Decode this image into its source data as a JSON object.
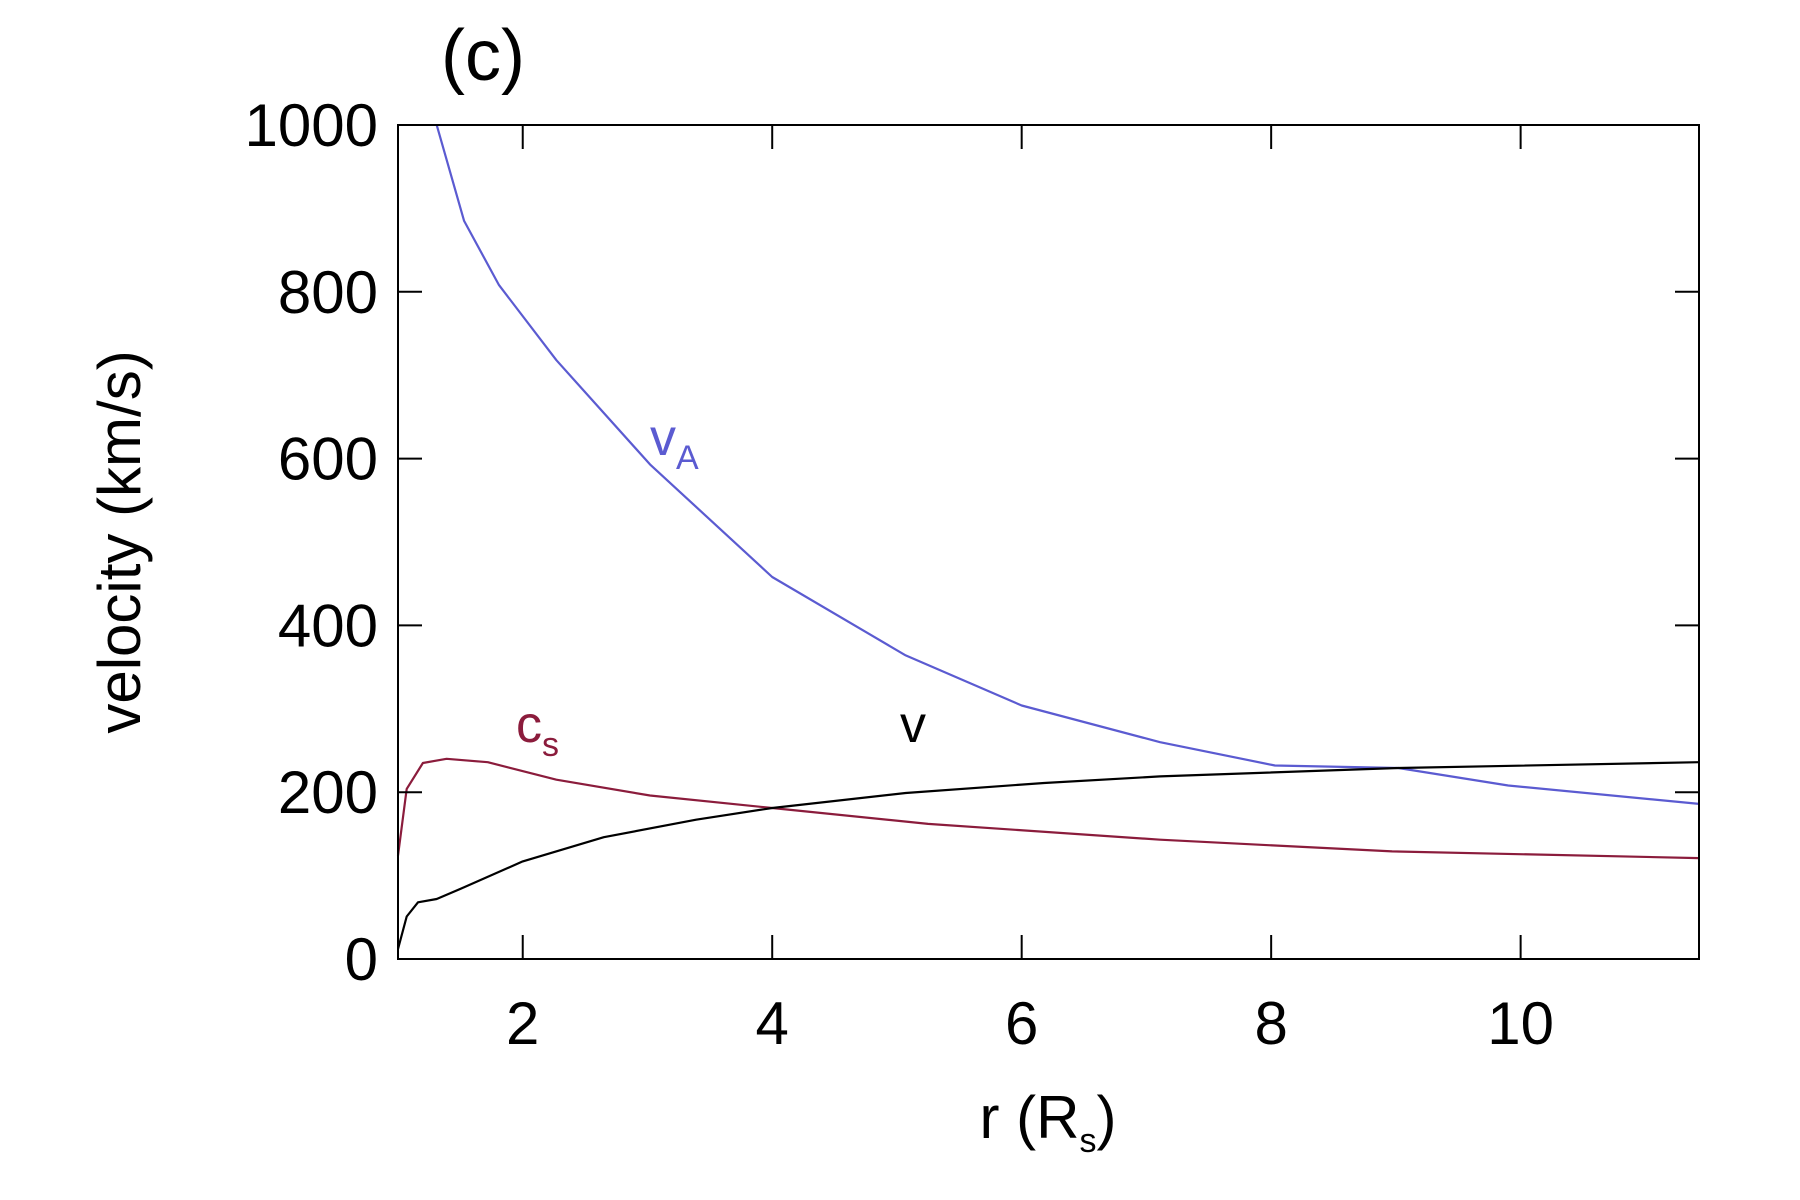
{
  "chart_data": {
    "type": "line",
    "title": "(c)",
    "xlabel": {
      "text": "r (R",
      "sub": "s",
      "end": ")"
    },
    "ylabel": "velocity (km/s)",
    "xlim": [
      1,
      11.43
    ],
    "xticks": [
      2,
      4,
      6,
      8,
      10
    ],
    "ylim": [
      0,
      1000
    ],
    "yticks": [
      0,
      200,
      400,
      600,
      800,
      1000
    ],
    "series": [
      {
        "name": "v_A",
        "color": "#5b5bd1",
        "x": [
          1.31,
          1.53,
          1.81,
          2.27,
          3.02,
          4.0,
          5.07,
          6.0,
          7.11,
          8.03,
          9.02,
          9.9,
          11.43
        ],
        "values": [
          1000,
          885,
          808,
          718,
          593,
          458,
          364,
          304,
          260,
          232,
          229,
          208,
          186
        ]
      },
      {
        "name": "c_s",
        "color": "#8b1c3c",
        "x": [
          1.0,
          1.07,
          1.2,
          1.39,
          1.72,
          2.27,
          3.02,
          4.0,
          5.25,
          7.11,
          8.97,
          11.43
        ],
        "values": [
          124,
          204,
          235,
          240,
          236,
          215,
          196,
          181,
          162,
          143,
          129,
          121
        ]
      },
      {
        "name": "v",
        "color": "#000000",
        "x": [
          1.0,
          1.07,
          1.16,
          1.31,
          1.53,
          2.0,
          2.65,
          3.39,
          4.0,
          5.07,
          6.18,
          7.11,
          9.02,
          11.43
        ],
        "values": [
          12,
          51,
          68,
          72,
          86,
          117,
          146,
          167,
          181,
          199,
          211,
          219,
          229,
          236
        ]
      }
    ],
    "annotations": [
      {
        "text": "v",
        "sub": "A",
        "color": "#5b5bd1"
      },
      {
        "text": "c",
        "sub": "s",
        "color": "#8b1c3c"
      },
      {
        "text": "v",
        "color": "#000000"
      }
    ]
  }
}
